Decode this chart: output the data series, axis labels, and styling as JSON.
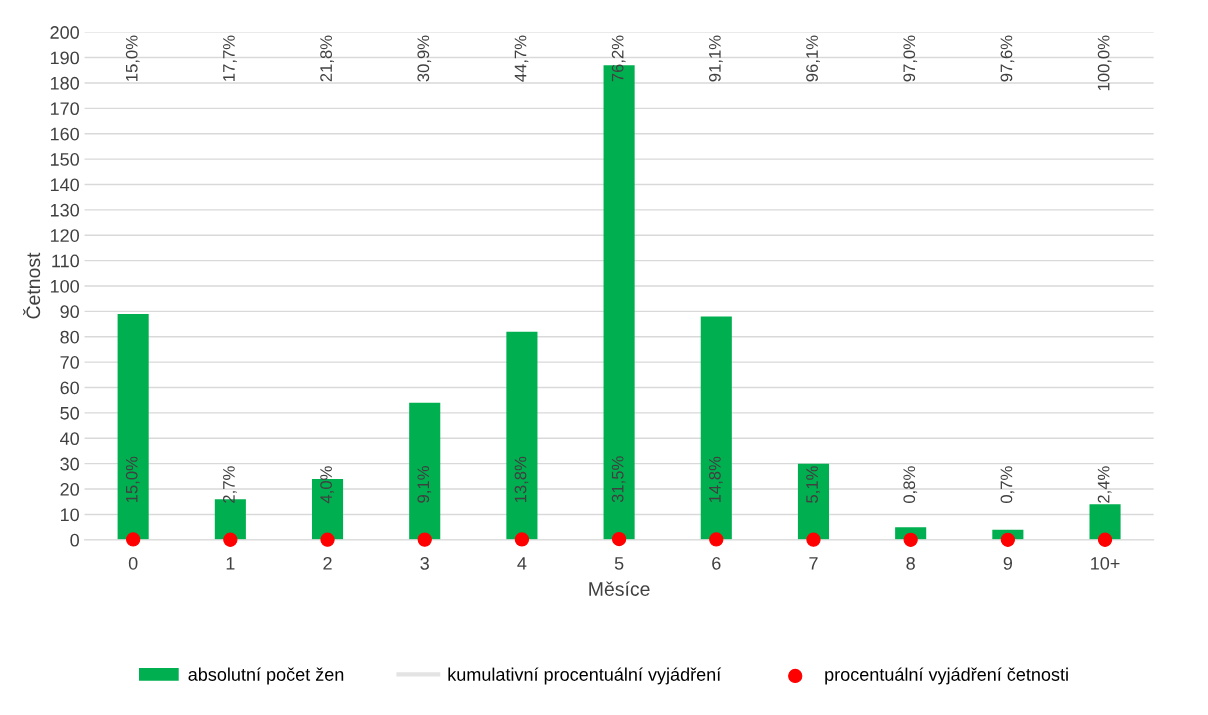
{
  "chart_data": {
    "type": "bar",
    "xlabel": "Měsíce",
    "ylabel": "Četnost",
    "categories": [
      "0",
      "1",
      "2",
      "3",
      "4",
      "5",
      "6",
      "7",
      "8",
      "9",
      "10+"
    ],
    "series": [
      {
        "name": "absolutní počet žen",
        "color": "#00b050",
        "values": [
          89,
          16,
          24,
          54,
          82,
          187,
          88,
          30,
          5,
          4,
          14
        ]
      },
      {
        "name": "kumulativní procentuální vyjádření",
        "type": "line",
        "color": "#e3e3e3",
        "values": [
          null,
          null,
          null,
          null,
          null,
          null,
          null,
          null,
          null,
          null,
          null
        ],
        "value_labels": [
          "15,0%",
          "17,7%",
          "21,8%",
          "30,9%",
          "44,7%",
          "76,2%",
          "91,1%",
          "96,1%",
          "97,0%",
          "97,6%",
          "100,0%"
        ]
      },
      {
        "name": "procentuální vyjádření četnosti",
        "type": "scatter",
        "color": "#ff0000",
        "marker": "circle",
        "values": [
          0.15,
          0.027,
          0.04,
          0.091,
          0.138,
          0.315,
          0.148,
          0.051,
          0.008,
          0.007,
          0.024
        ],
        "value_labels": [
          "15,0%",
          "2,7%",
          "4,0%",
          "9,1%",
          "13,8%",
          "31,5%",
          "14,8%",
          "5,1%",
          "0,8%",
          "0,7%",
          "2,4%"
        ]
      }
    ],
    "ylim": [
      0,
      200
    ],
    "yticks": [
      0,
      10,
      20,
      30,
      40,
      50,
      60,
      70,
      80,
      90,
      100,
      110,
      120,
      130,
      140,
      150,
      160,
      170,
      180,
      190,
      200
    ],
    "tick_labels": "xy",
    "grid": "y",
    "legend": "bottom"
  }
}
